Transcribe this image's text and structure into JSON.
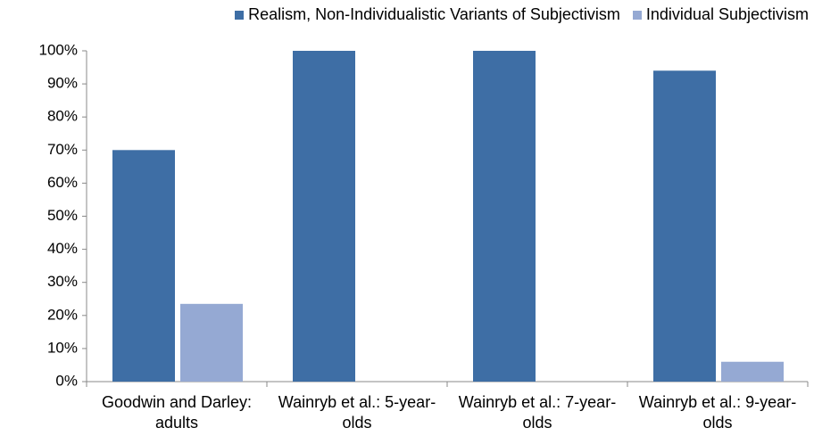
{
  "chart_data": {
    "type": "bar",
    "categories": [
      "Goodwin and Darley: adults",
      "Wainryb et al.: 5-year-olds",
      "Wainryb et al.: 7-year-olds",
      "Wainryb et al.: 9-year-olds"
    ],
    "series": [
      {
        "name": "Realism, Non-Individualistic Variants of Subjectivism",
        "color": "#3e6ea5",
        "values": [
          70,
          100,
          100,
          94
        ]
      },
      {
        "name": "Individual Subjectivism",
        "color": "#95a9d3",
        "values": [
          23.5,
          0,
          0,
          6
        ]
      }
    ],
    "ylim": [
      0,
      100
    ],
    "yticks": [
      {
        "value": 0,
        "label": "0%"
      },
      {
        "value": 10,
        "label": "10%"
      },
      {
        "value": 20,
        "label": "20%"
      },
      {
        "value": 30,
        "label": "30%"
      },
      {
        "value": 40,
        "label": "40%"
      },
      {
        "value": 50,
        "label": "50%"
      },
      {
        "value": 60,
        "label": "60%"
      },
      {
        "value": 70,
        "label": "70%"
      },
      {
        "value": 80,
        "label": "80%"
      },
      {
        "value": 90,
        "label": "90%"
      },
      {
        "value": 100,
        "label": "100%"
      }
    ],
    "legend": "top-right",
    "grid": false
  }
}
